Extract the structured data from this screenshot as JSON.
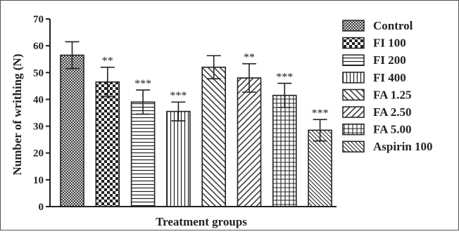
{
  "chart_data": {
    "type": "bar",
    "title": "",
    "xlabel": "Treatment groups",
    "ylabel": "Number of writhing (N)",
    "ylim": [
      0,
      70
    ],
    "yticks": [
      0,
      10,
      20,
      30,
      40,
      50,
      60,
      70
    ],
    "grid": false,
    "legend_position": "right",
    "categories": [
      "Control",
      "FI 100",
      "FI 200",
      "FI 400",
      "FA 1.25",
      "FA 2.50",
      "FA 5.00",
      "Aspirin 100"
    ],
    "values": [
      56.5,
      46.5,
      39,
      35.5,
      52,
      48,
      41.5,
      28.5
    ],
    "errors": [
      5,
      5.5,
      4.5,
      3.5,
      4.3,
      5.3,
      4.5,
      4
    ],
    "significance": [
      "",
      "**",
      "***",
      "***",
      "",
      "**",
      "***",
      "***"
    ],
    "patterns": [
      "crosshatch-fine",
      "checker",
      "horizontal",
      "vertical",
      "diagonal-up",
      "diagonal-down",
      "grid",
      "diagonal-dense"
    ],
    "colors": {
      "stroke": "#222222",
      "fill": "#ffffff",
      "frame": "#555555"
    }
  }
}
